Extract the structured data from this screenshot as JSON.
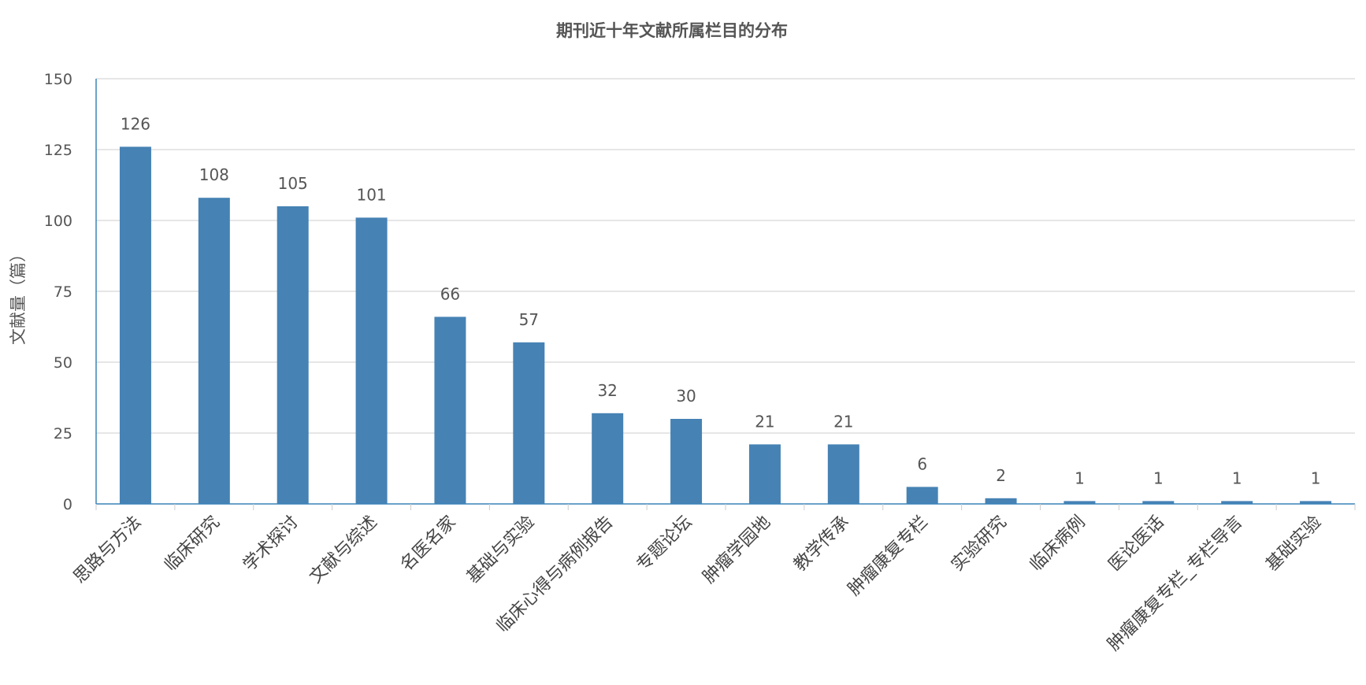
{
  "chart_data": {
    "type": "bar",
    "title": "期刊近十年文献所属栏目的分布",
    "xlabel": "",
    "ylabel": "文献量（篇）",
    "ylim": [
      0,
      150
    ],
    "yticks": [
      "0",
      "25",
      "50",
      "75",
      "100",
      "125",
      "150"
    ],
    "grid": true,
    "legend": "none",
    "bar_color": "#4682b4",
    "axis_color": "#3a83b8",
    "categories": [
      "思路与方法",
      "临床研究",
      "学术探讨",
      "文献与综述",
      "名医名家",
      "基础与实验",
      "临床心得与病例报告",
      "专题论坛",
      "肿瘤学园地",
      "教学传承",
      "肿瘤康复专栏",
      "实验研究",
      "临床病例",
      "医论医话",
      "肿瘤康复专栏_专栏导言",
      "基础实验"
    ],
    "values": [
      126,
      108,
      105,
      101,
      66,
      57,
      32,
      30,
      21,
      21,
      6,
      2,
      1,
      1,
      1,
      1
    ],
    "data_labels": [
      "126",
      "108",
      "105",
      "101",
      "66",
      "57",
      "32",
      "30",
      "21",
      "21",
      "6",
      "2",
      "1",
      "1",
      "1",
      "1"
    ]
  }
}
